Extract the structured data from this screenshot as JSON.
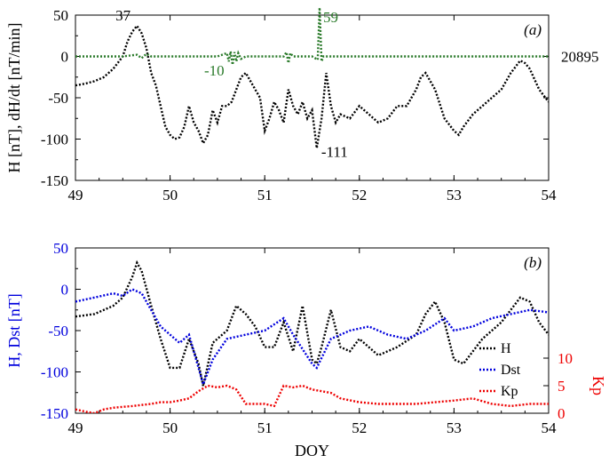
{
  "chart_data": [
    {
      "type": "line",
      "panel_label": "(a)",
      "xlabel": "",
      "ylabel": "H [nT], dH/dt [nT/min]",
      "xlim": [
        49,
        54
      ],
      "ylim": [
        -150,
        50
      ],
      "xticks": [
        "49",
        "50",
        "51",
        "52",
        "53",
        "54"
      ],
      "yticks": [
        "50",
        "0",
        "-50",
        "-100",
        "-150"
      ],
      "right_label": "20895",
      "annotations": [
        {
          "text": "37",
          "x": 49.63,
          "y": 37,
          "color": "#000000"
        },
        {
          "text": "-10",
          "x": 50.66,
          "y": -10,
          "color": "#2a7a2a"
        },
        {
          "text": "59",
          "x": 51.58,
          "y": 59,
          "color": "#2a7a2a"
        },
        {
          "text": "-111",
          "x": 51.56,
          "y": -111,
          "color": "#000000"
        }
      ],
      "series": [
        {
          "color": "#000000",
          "style": "dotted",
          "x": [
            49.0,
            49.1,
            49.2,
            49.3,
            49.4,
            49.5,
            49.55,
            49.6,
            49.65,
            49.7,
            49.75,
            49.8,
            49.85,
            49.9,
            49.95,
            50.0,
            50.05,
            50.1,
            50.15,
            50.2,
            50.25,
            50.3,
            50.35,
            50.4,
            50.45,
            50.5,
            50.55,
            50.6,
            50.65,
            50.7,
            50.75,
            50.8,
            50.85,
            50.9,
            50.95,
            51.0,
            51.05,
            51.1,
            51.15,
            51.2,
            51.25,
            51.3,
            51.35,
            51.4,
            51.45,
            51.5,
            51.55,
            51.6,
            51.65,
            51.7,
            51.75,
            51.8,
            51.9,
            52.0,
            52.1,
            52.2,
            52.3,
            52.4,
            52.5,
            52.6,
            52.65,
            52.7,
            52.8,
            52.9,
            53.0,
            53.05,
            53.1,
            53.2,
            53.3,
            53.4,
            53.5,
            53.6,
            53.7,
            53.75,
            53.8,
            53.9,
            54.0
          ],
          "y": [
            -35,
            -33,
            -30,
            -25,
            -15,
            0,
            18,
            30,
            37,
            28,
            10,
            -20,
            -35,
            -60,
            -85,
            -95,
            -100,
            -98,
            -85,
            -60,
            -80,
            -90,
            -105,
            -95,
            -65,
            -80,
            -60,
            -60,
            -55,
            -40,
            -25,
            -20,
            -30,
            -40,
            -50,
            -90,
            -75,
            -55,
            -65,
            -80,
            -40,
            -60,
            -70,
            -55,
            -75,
            -65,
            -111,
            -75,
            -20,
            -60,
            -80,
            -70,
            -75,
            -60,
            -70,
            -80,
            -75,
            -60,
            -60,
            -40,
            -25,
            -20,
            -40,
            -75,
            -90,
            -95,
            -85,
            -70,
            -60,
            -50,
            -40,
            -20,
            -5,
            -8,
            -15,
            -40,
            -55
          ]
        },
        {
          "color": "#2a7a2a",
          "style": "dotted",
          "x": [
            49.0,
            49.5,
            49.65,
            49.7,
            49.75,
            49.8,
            50.0,
            50.3,
            50.5,
            50.6,
            50.62,
            50.64,
            50.66,
            50.68,
            50.7,
            50.72,
            50.75,
            50.8,
            51.0,
            51.2,
            51.23,
            51.25,
            51.27,
            51.3,
            51.5,
            51.56,
            51.58,
            51.6,
            51.62,
            52.0,
            53.0,
            54.0
          ],
          "y": [
            0,
            0,
            2,
            -2,
            3,
            0,
            0,
            0,
            0,
            4,
            -6,
            6,
            -10,
            5,
            -6,
            4,
            -3,
            0,
            0,
            0,
            5,
            -8,
            4,
            0,
            0,
            -4,
            59,
            -6,
            0,
            0,
            0,
            0
          ]
        }
      ]
    },
    {
      "type": "line",
      "panel_label": "(b)",
      "xlabel": "DOY",
      "ylabel": "H, Dst [nT]",
      "y2label": "Kp",
      "xlim": [
        49,
        54
      ],
      "ylim": [
        -150,
        50
      ],
      "y2lim": [
        0,
        30
      ],
      "xticks": [
        "49",
        "50",
        "51",
        "52",
        "53",
        "54"
      ],
      "yticks": [
        "50",
        "0",
        "-50",
        "-100",
        "-150"
      ],
      "y2ticks": [
        "10",
        "5",
        "0"
      ],
      "legend_position": "right",
      "series": [
        {
          "name": "H",
          "color": "#000000",
          "style": "dotted",
          "axis": "left",
          "x": [
            49.0,
            49.2,
            49.4,
            49.5,
            49.6,
            49.65,
            49.7,
            49.8,
            49.9,
            50.0,
            50.1,
            50.2,
            50.3,
            50.35,
            50.45,
            50.6,
            50.7,
            50.8,
            50.9,
            51.0,
            51.1,
            51.2,
            51.3,
            51.4,
            51.5,
            51.55,
            51.6,
            51.7,
            51.8,
            51.9,
            52.0,
            52.2,
            52.4,
            52.6,
            52.7,
            52.8,
            52.9,
            53.0,
            53.1,
            53.3,
            53.5,
            53.7,
            53.8,
            53.9,
            54.0
          ],
          "y": [
            -33,
            -30,
            -20,
            -10,
            15,
            32,
            22,
            -20,
            -60,
            -95,
            -95,
            -60,
            -90,
            -117,
            -65,
            -50,
            -20,
            -30,
            -45,
            -70,
            -70,
            -40,
            -75,
            -20,
            -85,
            -90,
            -70,
            -25,
            -70,
            -75,
            -60,
            -80,
            -70,
            -55,
            -30,
            -15,
            -40,
            -85,
            -90,
            -60,
            -40,
            -10,
            -15,
            -40,
            -55
          ]
        },
        {
          "name": "Dst",
          "color": "#0000dd",
          "style": "dotted",
          "axis": "left",
          "x": [
            49.0,
            49.2,
            49.4,
            49.5,
            49.6,
            49.7,
            49.8,
            49.9,
            50.0,
            50.1,
            50.2,
            50.3,
            50.35,
            50.45,
            50.6,
            50.8,
            51.0,
            51.2,
            51.3,
            51.5,
            51.55,
            51.7,
            51.9,
            52.1,
            52.3,
            52.5,
            52.7,
            52.9,
            53.0,
            53.2,
            53.4,
            53.6,
            53.8,
            54.0
          ],
          "y": [
            -15,
            -10,
            -5,
            -8,
            0,
            -5,
            -25,
            -45,
            -55,
            -65,
            -55,
            -95,
            -115,
            -85,
            -60,
            -55,
            -50,
            -35,
            -55,
            -90,
            -95,
            -60,
            -50,
            -45,
            -55,
            -60,
            -50,
            -35,
            -50,
            -45,
            -35,
            -30,
            -25,
            -28
          ]
        },
        {
          "name": "Kp",
          "color": "#ee0000",
          "style": "dotted",
          "axis": "right",
          "x": [
            49.0,
            49.1,
            49.2,
            49.3,
            49.4,
            49.6,
            49.8,
            49.9,
            50.0,
            50.1,
            50.2,
            50.3,
            50.4,
            50.5,
            50.6,
            50.7,
            50.8,
            51.0,
            51.1,
            51.2,
            51.3,
            51.4,
            51.5,
            51.6,
            51.7,
            51.8,
            52.0,
            52.2,
            52.4,
            52.6,
            52.8,
            53.0,
            53.2,
            53.4,
            53.6,
            53.8,
            54.0
          ],
          "y": [
            0.7,
            0.3,
            0,
            0.7,
            1,
            1.3,
            1.7,
            2,
            2,
            2.3,
            2.7,
            4,
            5,
            4.7,
            5,
            4.3,
            1.7,
            1.7,
            1.3,
            5,
            4.7,
            5,
            4.3,
            4,
            3.7,
            2.7,
            2,
            1.7,
            1.7,
            1.7,
            2,
            2.3,
            2.7,
            1.7,
            1.3,
            1.7,
            1.7
          ]
        }
      ]
    }
  ]
}
